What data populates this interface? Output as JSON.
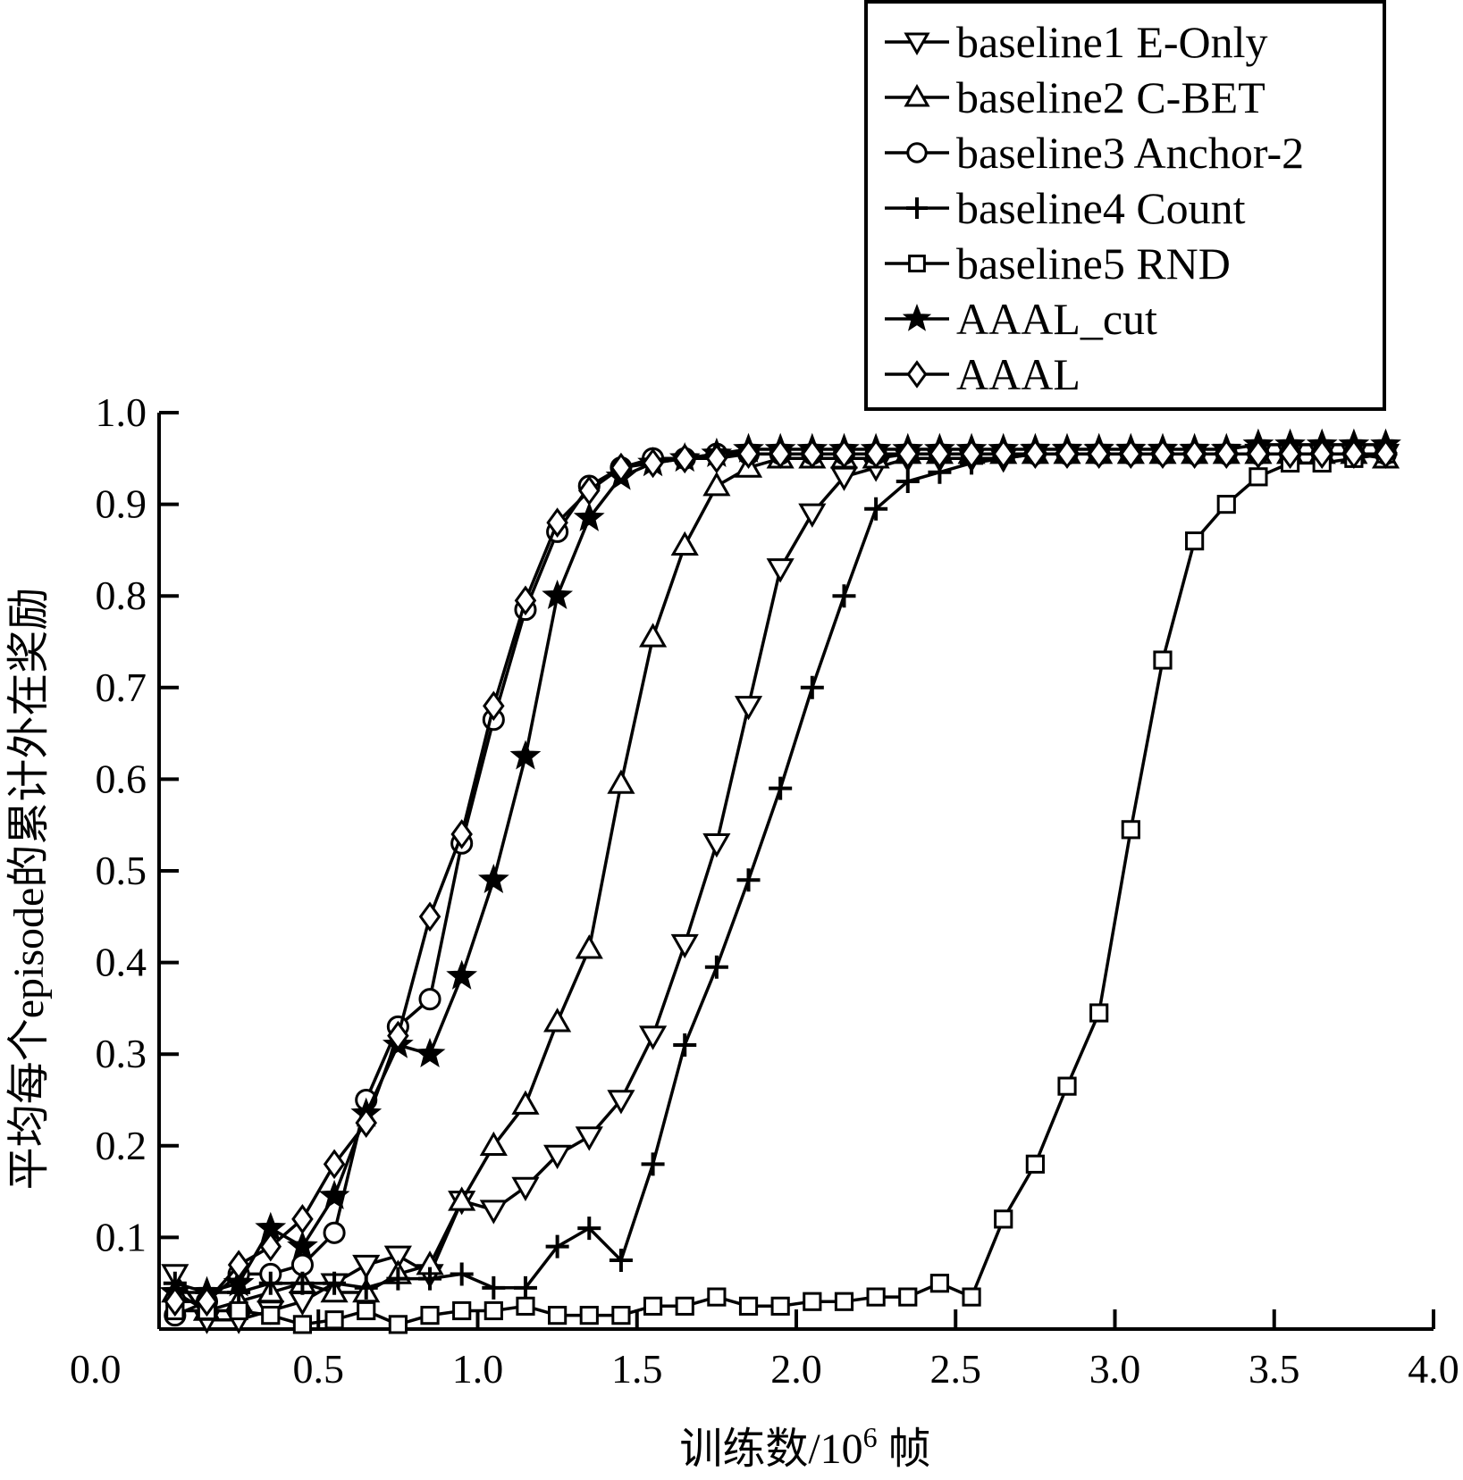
{
  "chart_data": {
    "type": "line",
    "title": "",
    "xlabel": "训练数/10",
    "xlabel_superscript": "6",
    "xlabel_suffix": " 帧",
    "ylabel": "平均每个episode的累计外在奖励",
    "xlim": [
      0,
      4.0
    ],
    "ylim": [
      0,
      1.0
    ],
    "xticks": [
      "0.0",
      "0.5",
      "1.0",
      "1.5",
      "2.0",
      "2.5",
      "3.0",
      "3.5",
      "4.0"
    ],
    "yticks": [
      "0.1",
      "0.2",
      "0.3",
      "0.4",
      "0.5",
      "0.6",
      "0.7",
      "0.8",
      "0.9",
      "1.0"
    ],
    "grid": false,
    "legend_position": "top-right",
    "x": [
      0.05,
      0.15,
      0.25,
      0.35,
      0.45,
      0.55,
      0.65,
      0.75,
      0.85,
      0.95,
      1.05,
      1.15,
      1.25,
      1.35,
      1.45,
      1.55,
      1.65,
      1.75,
      1.85,
      1.95,
      2.05,
      2.15,
      2.25,
      2.35,
      2.45,
      2.55,
      2.65,
      2.75,
      2.85,
      2.95,
      3.05,
      3.15,
      3.25,
      3.35,
      3.45,
      3.55,
      3.65,
      3.75,
      3.85
    ],
    "series": [
      {
        "name": "baseline1 E-Only",
        "marker": "triangle-down",
        "values": [
          0.06,
          0.01,
          0.01,
          0.02,
          0.03,
          0.05,
          0.07,
          0.08,
          0.06,
          0.14,
          0.13,
          0.155,
          0.19,
          0.21,
          0.25,
          0.32,
          0.42,
          0.53,
          0.68,
          0.83,
          0.89,
          0.93,
          0.94,
          0.95,
          0.95,
          0.95,
          0.95,
          0.955,
          0.955,
          0.955,
          0.955,
          0.955,
          0.955,
          0.955,
          0.955,
          0.955,
          0.955,
          0.955,
          0.955
        ]
      },
      {
        "name": "baseline2 C-BET",
        "marker": "triangle-up",
        "values": [
          0.04,
          0.02,
          0.03,
          0.04,
          0.05,
          0.04,
          0.04,
          0.06,
          0.07,
          0.14,
          0.2,
          0.245,
          0.335,
          0.415,
          0.595,
          0.755,
          0.855,
          0.92,
          0.94,
          0.95,
          0.95,
          0.95,
          0.95,
          0.955,
          0.955,
          0.955,
          0.955,
          0.955,
          0.955,
          0.955,
          0.955,
          0.955,
          0.955,
          0.955,
          0.955,
          0.955,
          0.955,
          0.955,
          0.95
        ]
      },
      {
        "name": "baseline3 Anchor-2",
        "marker": "circle",
        "values": [
          0.015,
          0.03,
          0.06,
          0.06,
          0.07,
          0.105,
          0.25,
          0.33,
          0.36,
          0.53,
          0.665,
          0.785,
          0.87,
          0.92,
          0.94,
          0.95,
          0.95,
          0.955,
          0.955,
          0.955,
          0.955,
          0.955,
          0.955,
          0.955,
          0.955,
          0.955,
          0.955,
          0.955,
          0.955,
          0.955,
          0.955,
          0.955,
          0.955,
          0.955,
          0.955,
          0.955,
          0.955,
          0.955,
          0.955
        ]
      },
      {
        "name": "baseline4 Count",
        "marker": "plus",
        "values": [
          0.05,
          0.04,
          0.04,
          0.05,
          0.05,
          0.05,
          0.045,
          0.055,
          0.055,
          0.06,
          0.045,
          0.045,
          0.09,
          0.11,
          0.075,
          0.18,
          0.31,
          0.395,
          0.49,
          0.59,
          0.7,
          0.8,
          0.895,
          0.925,
          0.935,
          0.945,
          0.95,
          0.955,
          0.955,
          0.955,
          0.955,
          0.955,
          0.955,
          0.955,
          0.955,
          0.955,
          0.955,
          0.955,
          0.955
        ]
      },
      {
        "name": "baseline5 RND",
        "marker": "square",
        "values": [
          0.02,
          0.02,
          0.02,
          0.015,
          0.005,
          0.01,
          0.02,
          0.005,
          0.015,
          0.02,
          0.02,
          0.025,
          0.015,
          0.015,
          0.015,
          0.025,
          0.025,
          0.035,
          0.025,
          0.025,
          0.03,
          0.03,
          0.035,
          0.035,
          0.05,
          0.035,
          0.12,
          0.18,
          0.265,
          0.345,
          0.545,
          0.73,
          0.86,
          0.9,
          0.93,
          0.945,
          0.945,
          0.95,
          0.955
        ]
      },
      {
        "name": "AAAL_cut",
        "marker": "star",
        "values": [
          0.04,
          0.04,
          0.05,
          0.11,
          0.09,
          0.145,
          0.235,
          0.31,
          0.3,
          0.385,
          0.49,
          0.625,
          0.8,
          0.885,
          0.93,
          0.945,
          0.95,
          0.955,
          0.96,
          0.96,
          0.96,
          0.96,
          0.96,
          0.96,
          0.96,
          0.96,
          0.96,
          0.96,
          0.96,
          0.96,
          0.96,
          0.96,
          0.96,
          0.96,
          0.965,
          0.965,
          0.965,
          0.965,
          0.965
        ]
      },
      {
        "name": "AAAL",
        "marker": "diamond",
        "values": [
          0.03,
          0.03,
          0.07,
          0.09,
          0.12,
          0.18,
          0.225,
          0.32,
          0.45,
          0.54,
          0.68,
          0.795,
          0.88,
          0.915,
          0.94,
          0.945,
          0.95,
          0.95,
          0.955,
          0.955,
          0.955,
          0.955,
          0.955,
          0.955,
          0.955,
          0.955,
          0.955,
          0.955,
          0.955,
          0.955,
          0.955,
          0.955,
          0.955,
          0.955,
          0.955,
          0.955,
          0.955,
          0.955,
          0.955
        ]
      }
    ]
  }
}
